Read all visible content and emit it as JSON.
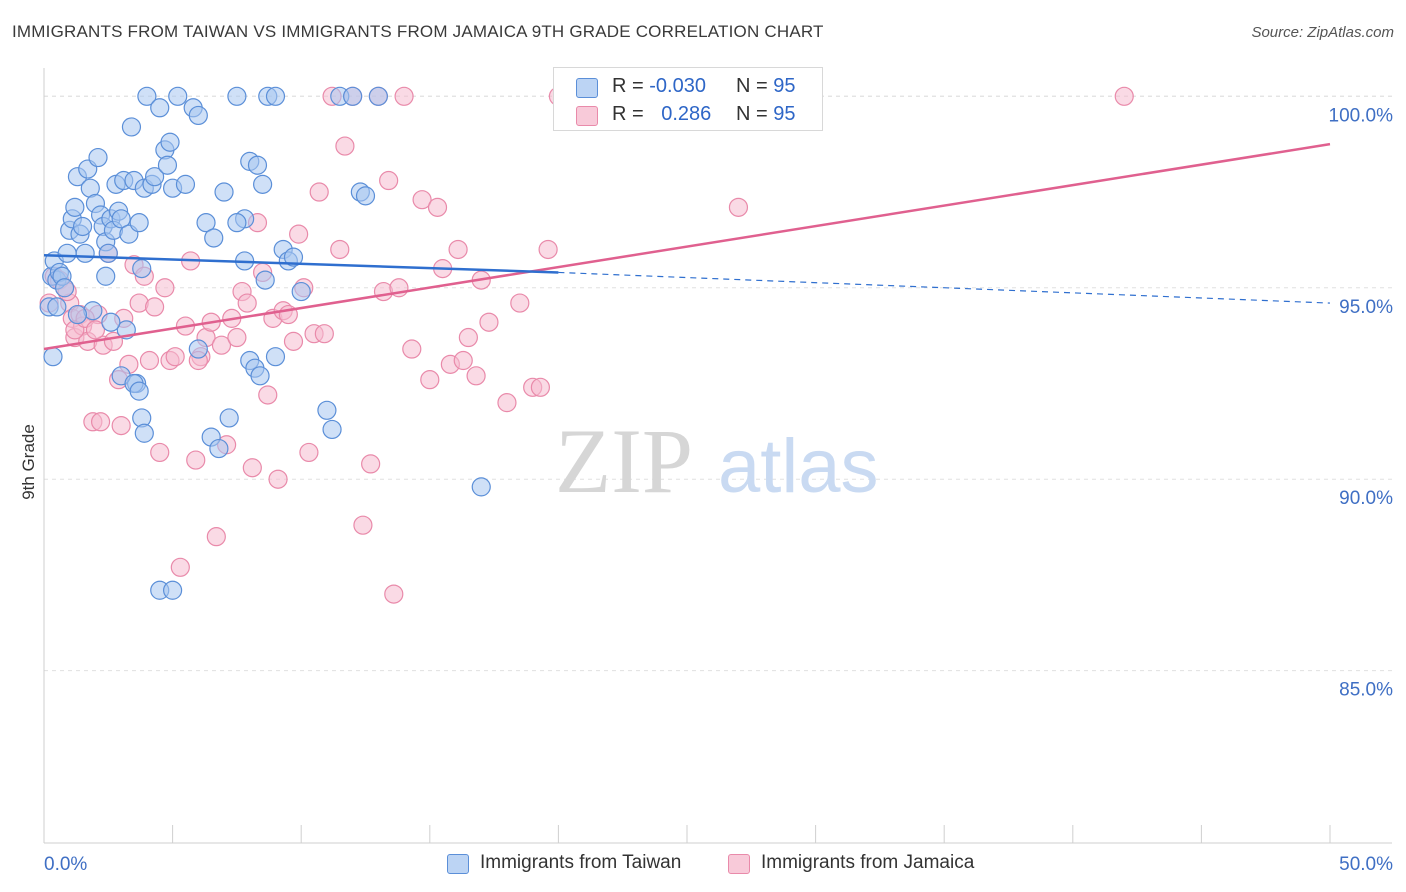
{
  "title": "IMMIGRANTS FROM TAIWAN VS IMMIGRANTS FROM JAMAICA 9TH GRADE CORRELATION CHART",
  "source": "Source: ZipAtlas.com",
  "watermark": {
    "zip": "ZIP",
    "atlas": "atlas"
  },
  "legend": {
    "rows": [
      {
        "r_label": "R =",
        "r_value": "-0.030",
        "n_label": "N =",
        "n_value": "95"
      },
      {
        "r_label": "R =",
        "r_value": "0.286",
        "n_label": "N =",
        "n_value": "95"
      }
    ]
  },
  "bottom_legend": {
    "taiwan": "Immigrants from Taiwan",
    "jamaica": "Immigrants from Jamaica"
  },
  "colors": {
    "taiwan_fill": "#a8c6f0",
    "taiwan_stroke": "#5b8fd8",
    "taiwan_line": "#2f6fcf",
    "jamaica_fill": "#f6bcd0",
    "jamaica_stroke": "#e98aaa",
    "jamaica_line": "#e0608f",
    "tick_label": "#3f6fc4",
    "grid": "#e0e0e0"
  },
  "chart_data": {
    "type": "scatter",
    "ylabel": "9th Grade",
    "xlim": [
      0,
      50
    ],
    "ylim": [
      80.5,
      101.0
    ],
    "x_tick_labels": [
      "0.0%",
      "50.0%"
    ],
    "y_ticks": [
      85,
      90,
      95,
      100
    ],
    "y_tick_labels": [
      "85.0%",
      "90.0%",
      "95.0%",
      "100.0%"
    ],
    "grid": true,
    "series": [
      {
        "name": "Immigrants from Taiwan",
        "R": -0.03,
        "N": 95,
        "trend": {
          "x_start": 0,
          "y_start": 95.85,
          "x_end": 20,
          "y_end": 95.4,
          "dashed_to_x": 50,
          "dashed_to_y": 94.6
        },
        "points": [
          [
            0.2,
            94.5
          ],
          [
            0.3,
            95.3
          ],
          [
            0.35,
            93.2
          ],
          [
            0.4,
            95.7
          ],
          [
            0.5,
            95.2
          ],
          [
            0.6,
            95.4
          ],
          [
            0.7,
            95.3
          ],
          [
            0.8,
            95.0
          ],
          [
            0.9,
            95.9
          ],
          [
            1.0,
            96.5
          ],
          [
            1.1,
            96.8
          ],
          [
            1.2,
            97.1
          ],
          [
            1.3,
            97.9
          ],
          [
            1.4,
            96.4
          ],
          [
            1.5,
            96.6
          ],
          [
            1.6,
            95.9
          ],
          [
            1.7,
            98.1
          ],
          [
            1.8,
            97.6
          ],
          [
            1.9,
            94.4
          ],
          [
            2.0,
            97.2
          ],
          [
            2.1,
            98.4
          ],
          [
            2.2,
            96.9
          ],
          [
            2.3,
            96.6
          ],
          [
            2.4,
            96.2
          ],
          [
            2.5,
            95.9
          ],
          [
            2.6,
            96.8
          ],
          [
            2.7,
            96.5
          ],
          [
            2.8,
            97.7
          ],
          [
            2.9,
            97.0
          ],
          [
            3.0,
            96.8
          ],
          [
            3.1,
            97.8
          ],
          [
            3.2,
            93.9
          ],
          [
            3.3,
            96.4
          ],
          [
            3.4,
            99.2
          ],
          [
            3.5,
            97.8
          ],
          [
            3.6,
            92.5
          ],
          [
            3.7,
            96.7
          ],
          [
            3.8,
            95.5
          ],
          [
            3.9,
            97.6
          ],
          [
            4.0,
            100.0
          ],
          [
            4.2,
            97.7
          ],
          [
            4.3,
            97.9
          ],
          [
            4.5,
            99.7
          ],
          [
            4.7,
            98.6
          ],
          [
            4.8,
            98.2
          ],
          [
            4.9,
            98.8
          ],
          [
            5.0,
            97.6
          ],
          [
            5.2,
            100.0
          ],
          [
            5.5,
            97.7
          ],
          [
            5.8,
            99.7
          ],
          [
            6.0,
            99.5
          ],
          [
            6.3,
            96.7
          ],
          [
            6.6,
            96.3
          ],
          [
            7.0,
            97.5
          ],
          [
            7.5,
            100.0
          ],
          [
            7.8,
            96.8
          ],
          [
            8.0,
            98.3
          ],
          [
            8.3,
            98.2
          ],
          [
            8.5,
            97.7
          ],
          [
            8.7,
            100.0
          ],
          [
            3.0,
            92.7
          ],
          [
            3.5,
            92.5
          ],
          [
            3.7,
            92.3
          ],
          [
            3.8,
            91.6
          ],
          [
            3.9,
            91.2
          ],
          [
            4.5,
            87.1
          ],
          [
            5.0,
            87.1
          ],
          [
            6.0,
            93.4
          ],
          [
            6.5,
            91.1
          ],
          [
            6.8,
            90.8
          ],
          [
            7.2,
            91.6
          ],
          [
            7.5,
            96.7
          ],
          [
            7.8,
            95.7
          ],
          [
            8.0,
            93.1
          ],
          [
            8.2,
            92.9
          ],
          [
            8.4,
            92.7
          ],
          [
            8.6,
            95.2
          ],
          [
            9.0,
            93.2
          ],
          [
            9.3,
            96.0
          ],
          [
            9.5,
            95.7
          ],
          [
            9.7,
            95.8
          ],
          [
            10.0,
            94.9
          ],
          [
            9.0,
            100.0
          ],
          [
            11.0,
            91.8
          ],
          [
            11.2,
            91.3
          ],
          [
            11.5,
            100.0
          ],
          [
            12.0,
            100.0
          ],
          [
            13.0,
            100.0
          ],
          [
            12.3,
            97.5
          ],
          [
            12.5,
            97.4
          ],
          [
            17.0,
            89.8
          ],
          [
            2.6,
            94.1
          ],
          [
            1.3,
            94.3
          ],
          [
            0.5,
            94.5
          ],
          [
            2.4,
            95.3
          ]
        ]
      },
      {
        "name": "Immigrants from Jamaica",
        "R": 0.286,
        "N": 95,
        "trend": {
          "x_start": 0,
          "y_start": 93.4,
          "x_end": 50,
          "y_end": 98.75
        },
        "points": [
          [
            0.2,
            94.6
          ],
          [
            0.4,
            95.3
          ],
          [
            0.6,
            95.2
          ],
          [
            0.8,
            95.0
          ],
          [
            1.0,
            94.6
          ],
          [
            1.1,
            94.2
          ],
          [
            1.2,
            93.7
          ],
          [
            1.4,
            94.3
          ],
          [
            1.5,
            94.0
          ],
          [
            1.7,
            93.6
          ],
          [
            1.9,
            91.5
          ],
          [
            2.1,
            94.3
          ],
          [
            2.3,
            93.5
          ],
          [
            2.5,
            95.9
          ],
          [
            2.7,
            93.6
          ],
          [
            2.9,
            92.6
          ],
          [
            3.1,
            94.2
          ],
          [
            3.3,
            93.0
          ],
          [
            3.5,
            95.6
          ],
          [
            3.7,
            94.6
          ],
          [
            3.9,
            95.3
          ],
          [
            4.1,
            93.1
          ],
          [
            4.3,
            94.5
          ],
          [
            4.5,
            90.7
          ],
          [
            4.7,
            95.0
          ],
          [
            4.9,
            93.1
          ],
          [
            5.1,
            93.2
          ],
          [
            5.3,
            87.7
          ],
          [
            5.5,
            94.0
          ],
          [
            5.7,
            95.7
          ],
          [
            5.9,
            90.5
          ],
          [
            6.1,
            93.2
          ],
          [
            6.3,
            93.7
          ],
          [
            6.5,
            94.1
          ],
          [
            6.7,
            88.5
          ],
          [
            6.9,
            93.5
          ],
          [
            7.1,
            90.9
          ],
          [
            7.3,
            94.2
          ],
          [
            7.5,
            93.7
          ],
          [
            7.7,
            94.9
          ],
          [
            7.9,
            94.6
          ],
          [
            8.1,
            90.3
          ],
          [
            8.3,
            96.7
          ],
          [
            8.5,
            95.4
          ],
          [
            8.7,
            92.2
          ],
          [
            8.9,
            94.2
          ],
          [
            9.1,
            90.0
          ],
          [
            9.3,
            94.4
          ],
          [
            9.5,
            94.3
          ],
          [
            9.7,
            93.6
          ],
          [
            9.9,
            96.4
          ],
          [
            10.1,
            95.0
          ],
          [
            10.3,
            90.7
          ],
          [
            10.5,
            93.8
          ],
          [
            10.7,
            97.5
          ],
          [
            10.9,
            93.8
          ],
          [
            11.2,
            100.0
          ],
          [
            11.5,
            96.0
          ],
          [
            11.7,
            98.7
          ],
          [
            12.0,
            100.0
          ],
          [
            12.4,
            88.8
          ],
          [
            12.7,
            90.4
          ],
          [
            13.0,
            100.0
          ],
          [
            13.2,
            94.9
          ],
          [
            13.4,
            97.8
          ],
          [
            13.6,
            87.0
          ],
          [
            13.8,
            95.0
          ],
          [
            14.0,
            100.0
          ],
          [
            14.3,
            93.4
          ],
          [
            14.7,
            97.3
          ],
          [
            15.0,
            92.6
          ],
          [
            15.3,
            97.1
          ],
          [
            15.5,
            95.5
          ],
          [
            15.8,
            93.0
          ],
          [
            16.1,
            96.0
          ],
          [
            16.3,
            93.1
          ],
          [
            16.5,
            93.7
          ],
          [
            16.8,
            92.7
          ],
          [
            17.0,
            95.2
          ],
          [
            17.3,
            94.1
          ],
          [
            18.0,
            92.0
          ],
          [
            18.5,
            94.6
          ],
          [
            19.0,
            92.4
          ],
          [
            19.3,
            92.4
          ],
          [
            19.6,
            96.0
          ],
          [
            20.0,
            100.0
          ],
          [
            27.0,
            97.1
          ],
          [
            42.0,
            100.0
          ],
          [
            2.2,
            91.5
          ],
          [
            3.0,
            91.4
          ],
          [
            1.2,
            93.9
          ],
          [
            1.6,
            94.2
          ],
          [
            2.0,
            93.9
          ],
          [
            0.9,
            94.9
          ],
          [
            6.0,
            93.1
          ]
        ]
      }
    ]
  }
}
